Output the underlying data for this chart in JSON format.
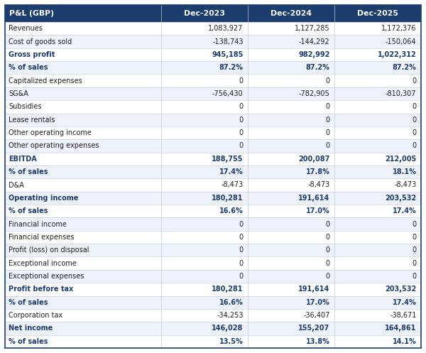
{
  "header": [
    "P&L (GBP)",
    "Dec-2023",
    "Dec-2024",
    "Dec-2025"
  ],
  "rows": [
    {
      "label": "Revenues",
      "vals": [
        "1,083,927",
        "1,127,285",
        "1,172,376"
      ],
      "bold": false,
      "blue": false
    },
    {
      "label": "Cost of goods sold",
      "vals": [
        "-138,743",
        "-144,292",
        "-150,064"
      ],
      "bold": false,
      "blue": false
    },
    {
      "label": "Gross profit",
      "vals": [
        "945,185",
        "982,992",
        "1,022,312"
      ],
      "bold": true,
      "blue": true
    },
    {
      "label": "% of sales",
      "vals": [
        "87.2%",
        "87.2%",
        "87.2%"
      ],
      "bold": true,
      "blue": true
    },
    {
      "label": "Capitalized expenses",
      "vals": [
        "0",
        "0",
        "0"
      ],
      "bold": false,
      "blue": false
    },
    {
      "label": "SG&A",
      "vals": [
        "-756,430",
        "-782,905",
        "-810,307"
      ],
      "bold": false,
      "blue": false
    },
    {
      "label": "Subsidies",
      "vals": [
        "0",
        "0",
        "0"
      ],
      "bold": false,
      "blue": false
    },
    {
      "label": "Lease rentals",
      "vals": [
        "0",
        "0",
        "0"
      ],
      "bold": false,
      "blue": false
    },
    {
      "label": "Other operating income",
      "vals": [
        "0",
        "0",
        "0"
      ],
      "bold": false,
      "blue": false
    },
    {
      "label": "Other operating expenses",
      "vals": [
        "0",
        "0",
        "0"
      ],
      "bold": false,
      "blue": false
    },
    {
      "label": "EBITDA",
      "vals": [
        "188,755",
        "200,087",
        "212,005"
      ],
      "bold": true,
      "blue": true
    },
    {
      "label": "% of sales",
      "vals": [
        "17.4%",
        "17.8%",
        "18.1%"
      ],
      "bold": true,
      "blue": true
    },
    {
      "label": "D&A",
      "vals": [
        "-8,473",
        "-8,473",
        "-8,473"
      ],
      "bold": false,
      "blue": false
    },
    {
      "label": "Operating income",
      "vals": [
        "180,281",
        "191,614",
        "203,532"
      ],
      "bold": true,
      "blue": true
    },
    {
      "label": "% of sales",
      "vals": [
        "16.6%",
        "17.0%",
        "17.4%"
      ],
      "bold": true,
      "blue": true
    },
    {
      "label": "Financial income",
      "vals": [
        "0",
        "0",
        "0"
      ],
      "bold": false,
      "blue": false
    },
    {
      "label": "Financial expenses",
      "vals": [
        "0",
        "0",
        "0"
      ],
      "bold": false,
      "blue": false
    },
    {
      "label": "Profit (loss) on disposal",
      "vals": [
        "0",
        "0",
        "0"
      ],
      "bold": false,
      "blue": false
    },
    {
      "label": "Exceptional income",
      "vals": [
        "0",
        "0",
        "0"
      ],
      "bold": false,
      "blue": false
    },
    {
      "label": "Exceptional expenses",
      "vals": [
        "0",
        "0",
        "0"
      ],
      "bold": false,
      "blue": false
    },
    {
      "label": "Profit before tax",
      "vals": [
        "180,281",
        "191,614",
        "203,532"
      ],
      "bold": true,
      "blue": true
    },
    {
      "label": "% of sales",
      "vals": [
        "16.6%",
        "17.0%",
        "17.4%"
      ],
      "bold": true,
      "blue": true
    },
    {
      "label": "Corporation tax",
      "vals": [
        "-34,253",
        "-36,407",
        "-38,671"
      ],
      "bold": false,
      "blue": false
    },
    {
      "label": "Net income",
      "vals": [
        "146,028",
        "155,207",
        "164,861"
      ],
      "bold": true,
      "blue": true
    },
    {
      "label": "% of sales",
      "vals": [
        "13.5%",
        "13.8%",
        "14.1%"
      ],
      "bold": true,
      "blue": true
    }
  ],
  "header_bg": "#1b3d6e",
  "header_text": "#ffffff",
  "bold_blue_text": "#1b3d6e",
  "normal_text": "#222222",
  "row_bg_even": "#eef2fa",
  "row_bg_odd": "#ffffff",
  "border_color": "#c0c8d8",
  "outer_border": "#1b3d6e",
  "fig_width": 6.0,
  "fig_height": 4.97,
  "dpi": 100
}
